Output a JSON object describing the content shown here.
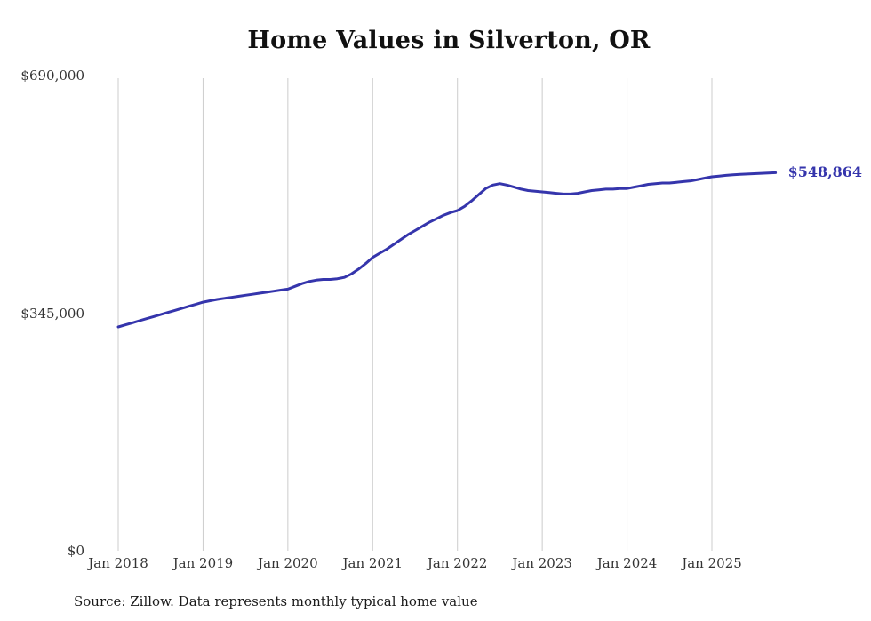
{
  "title": "Home Values in Silverton, OR",
  "source_note": "Source: Zillow. Data represents monthly typical home value",
  "end_label": "$548,864",
  "colors": {
    "line": "#3535ac",
    "grid": "#cccccc",
    "tick_text": "#333333",
    "end_label_text": "#3535ac"
  },
  "chart_data": {
    "type": "line",
    "title": "Home Values in Silverton, OR",
    "xlabel": "",
    "ylabel": "",
    "ylim": [
      0,
      690000
    ],
    "y_ticks": [
      0,
      345000,
      690000
    ],
    "y_tick_labels": [
      "$0",
      "$345,000",
      "$690,000"
    ],
    "x_tick_labels": [
      "Jan 2018",
      "Jan 2019",
      "Jan 2020",
      "Jan 2021",
      "Jan 2022",
      "Jan 2023",
      "Jan 2024",
      "Jan 2025"
    ],
    "x_start": "2018-01",
    "x_end": "2025-10",
    "grid": "vertical-only",
    "legend": "none",
    "final_value": 548864,
    "series": [
      {
        "name": "Monthly typical home value",
        "values": [
          325000,
          328000,
          331000,
          334000,
          337000,
          340000,
          343000,
          346000,
          349000,
          352000,
          355000,
          358000,
          361000,
          363000,
          365000,
          366500,
          368000,
          369500,
          371000,
          372500,
          374000,
          375500,
          377000,
          378500,
          380000,
          384000,
          388000,
          391000,
          393000,
          394000,
          394000,
          395000,
          397000,
          402000,
          409000,
          417000,
          426000,
          432000,
          438000,
          445000,
          452000,
          459000,
          465000,
          471000,
          477000,
          482000,
          487000,
          491000,
          494000,
          500000,
          508000,
          517000,
          526000,
          531000,
          533000,
          531000,
          528000,
          525000,
          523000,
          522000,
          521000,
          520000,
          519000,
          518000,
          518000,
          519000,
          521000,
          523000,
          524000,
          525000,
          525000,
          526000,
          526000,
          528000,
          530000,
          532000,
          533000,
          534000,
          534000,
          535000,
          536000,
          537000,
          539000,
          541000,
          543000,
          544000,
          545000,
          546000,
          546500,
          547000,
          547500,
          548000,
          548400,
          548864
        ]
      }
    ]
  }
}
